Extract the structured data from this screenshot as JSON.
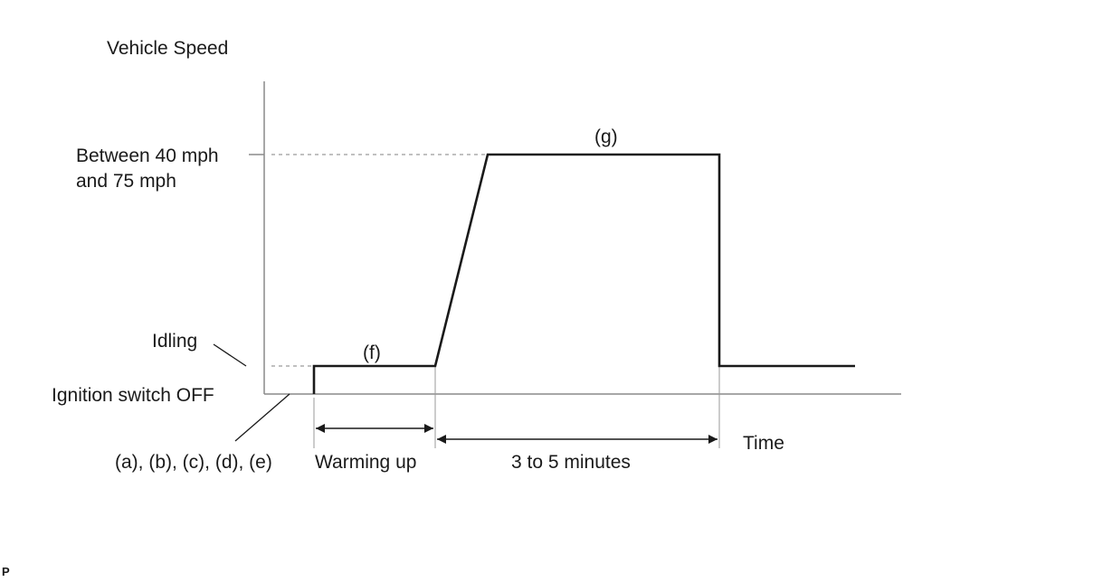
{
  "diagram": {
    "y_axis_label": "Vehicle Speed",
    "x_axis_label": "Time",
    "speed_level_line1": "Between 40 mph",
    "speed_level_line2": "and 75 mph",
    "idling_label": "Idling",
    "ignition_label": "Ignition switch OFF",
    "steps_label": "(a), (b), (c), (d), (e)",
    "warming_label": "Warming up",
    "duration_label": "3 to 5 minutes",
    "step_f": "(f)",
    "step_g": "(g)",
    "corner_mark": "P"
  },
  "colors": {
    "line": "#1a1a1a",
    "axis": "#8a8a8a",
    "guide": "#9a9a9a"
  }
}
